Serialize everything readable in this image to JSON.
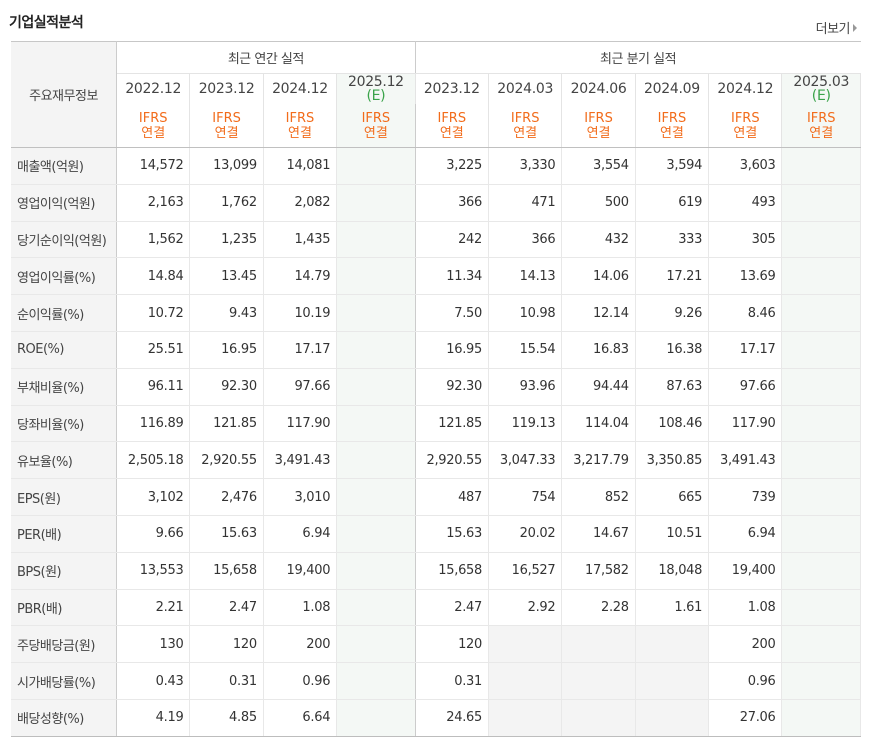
{
  "title": "기업실적분석",
  "more_label": "더보기",
  "header": {
    "row_head": "주요재무정보",
    "annual_group": "최근 연간 실적",
    "quarter_group": "최근 분기 실적",
    "annual_cols": [
      {
        "period": "2022.12",
        "est": "",
        "ifrs": "IFRS",
        "type": "연결"
      },
      {
        "period": "2023.12",
        "est": "",
        "ifrs": "IFRS",
        "type": "연결"
      },
      {
        "period": "2024.12",
        "est": "",
        "ifrs": "IFRS",
        "type": "연결"
      },
      {
        "period": "2025.12",
        "est": "(E)",
        "ifrs": "IFRS",
        "type": "연결"
      }
    ],
    "quarter_cols": [
      {
        "period": "2023.12",
        "est": "",
        "ifrs": "IFRS",
        "type": "연결"
      },
      {
        "period": "2024.03",
        "est": "",
        "ifrs": "IFRS",
        "type": "연결"
      },
      {
        "period": "2024.06",
        "est": "",
        "ifrs": "IFRS",
        "type": "연결"
      },
      {
        "period": "2024.09",
        "est": "",
        "ifrs": "IFRS",
        "type": "연결"
      },
      {
        "period": "2024.12",
        "est": "",
        "ifrs": "IFRS",
        "type": "연결"
      },
      {
        "period": "2025.03",
        "est": "(E)",
        "ifrs": "IFRS",
        "type": "연결"
      }
    ]
  },
  "rows": [
    {
      "label": "매출액(억원)",
      "annual": [
        "14,572",
        "13,099",
        "14,081",
        ""
      ],
      "quarter": [
        "3,225",
        "3,330",
        "3,554",
        "3,594",
        "3,603",
        ""
      ]
    },
    {
      "label": "영업이익(억원)",
      "annual": [
        "2,163",
        "1,762",
        "2,082",
        ""
      ],
      "quarter": [
        "366",
        "471",
        "500",
        "619",
        "493",
        ""
      ]
    },
    {
      "label": "당기순이익(억원)",
      "annual": [
        "1,562",
        "1,235",
        "1,435",
        ""
      ],
      "quarter": [
        "242",
        "366",
        "432",
        "333",
        "305",
        ""
      ]
    },
    {
      "label": "영업이익률(%)",
      "annual": [
        "14.84",
        "13.45",
        "14.79",
        ""
      ],
      "quarter": [
        "11.34",
        "14.13",
        "14.06",
        "17.21",
        "13.69",
        ""
      ]
    },
    {
      "label": "순이익률(%)",
      "annual": [
        "10.72",
        "9.43",
        "10.19",
        ""
      ],
      "quarter": [
        "7.50",
        "10.98",
        "12.14",
        "9.26",
        "8.46",
        ""
      ]
    },
    {
      "label": "ROE(%)",
      "annual": [
        "25.51",
        "16.95",
        "17.17",
        ""
      ],
      "quarter": [
        "16.95",
        "15.54",
        "16.83",
        "16.38",
        "17.17",
        ""
      ]
    },
    {
      "label": "부채비율(%)",
      "annual": [
        "96.11",
        "92.30",
        "97.66",
        ""
      ],
      "quarter": [
        "92.30",
        "93.96",
        "94.44",
        "87.63",
        "97.66",
        ""
      ]
    },
    {
      "label": "당좌비율(%)",
      "annual": [
        "116.89",
        "121.85",
        "117.90",
        ""
      ],
      "quarter": [
        "121.85",
        "119.13",
        "114.04",
        "108.46",
        "117.90",
        ""
      ]
    },
    {
      "label": "유보율(%)",
      "annual": [
        "2,505.18",
        "2,920.55",
        "3,491.43",
        ""
      ],
      "quarter": [
        "2,920.55",
        "3,047.33",
        "3,217.79",
        "3,350.85",
        "3,491.43",
        ""
      ]
    },
    {
      "label": "EPS(원)",
      "annual": [
        "3,102",
        "2,476",
        "3,010",
        ""
      ],
      "quarter": [
        "487",
        "754",
        "852",
        "665",
        "739",
        ""
      ]
    },
    {
      "label": "PER(배)",
      "annual": [
        "9.66",
        "15.63",
        "6.94",
        ""
      ],
      "quarter": [
        "15.63",
        "20.02",
        "14.67",
        "10.51",
        "6.94",
        ""
      ]
    },
    {
      "label": "BPS(원)",
      "annual": [
        "13,553",
        "15,658",
        "19,400",
        ""
      ],
      "quarter": [
        "15,658",
        "16,527",
        "17,582",
        "18,048",
        "19,400",
        ""
      ]
    },
    {
      "label": "PBR(배)",
      "annual": [
        "2.21",
        "2.47",
        "1.08",
        ""
      ],
      "quarter": [
        "2.47",
        "2.92",
        "2.28",
        "1.61",
        "1.08",
        ""
      ]
    },
    {
      "label": "주당배당금(원)",
      "annual": [
        "130",
        "120",
        "200",
        ""
      ],
      "quarter": [
        "120",
        "",
        "",
        "",
        "200",
        ""
      ]
    },
    {
      "label": "시가배당률(%)",
      "annual": [
        "0.43",
        "0.31",
        "0.96",
        ""
      ],
      "quarter": [
        "0.31",
        "",
        "",
        "",
        "0.96",
        ""
      ]
    },
    {
      "label": "배당성향(%)",
      "annual": [
        "4.19",
        "4.85",
        "6.64",
        ""
      ],
      "quarter": [
        "24.65",
        "",
        "",
        "",
        "27.06",
        ""
      ]
    }
  ],
  "group_starts": [
    0,
    3,
    6,
    9,
    13
  ],
  "empty_quarter_cells_from_row": 13,
  "colors": {
    "ifrs": "#f26c1b",
    "estimate": "#3aa34a",
    "estimate_bg": "#f4f8f5",
    "rowhead_bg": "#f4f4f4"
  }
}
